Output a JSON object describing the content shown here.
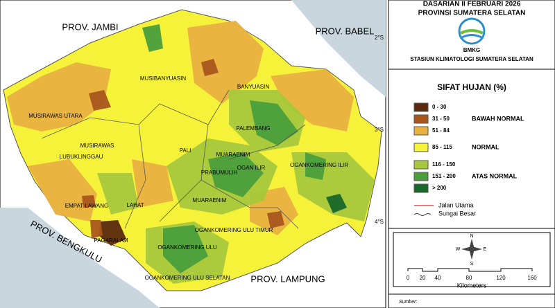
{
  "header": {
    "title": "DASARIAN II FEBRUARI 2026",
    "subtitle": "PROVINSI SUMATERA SELATAN",
    "logo": "BMKG",
    "station": "STASIUN KLIMATOLOGI SUMATERA SELATAN"
  },
  "legend": {
    "title": "SIFAT HUJAN (%)",
    "items": [
      {
        "label": "0 - 30",
        "color": "#5a2a0e"
      },
      {
        "label": "31 - 50",
        "color": "#a8561c"
      },
      {
        "label": "51 - 84",
        "color": "#e8b040"
      },
      {
        "label": "85 - 115",
        "color": "#f6f23a"
      },
      {
        "label": "116 - 150",
        "color": "#a6c83c"
      },
      {
        "label": "151 - 200",
        "color": "#4a9e3c"
      },
      {
        "label": "> 200",
        "color": "#17662a"
      }
    ],
    "groups": [
      "BAWAH NORMAL",
      "NORMAL",
      "ATAS NORMAL"
    ],
    "lines": [
      "Jalan Utama",
      "Sungai Besar"
    ]
  },
  "compass": [
    "N",
    "S",
    "E",
    "W"
  ],
  "scale": {
    "ticks": [
      "0",
      "20",
      "40",
      "80",
      "120",
      "160"
    ],
    "unit": "Kilometers"
  },
  "source": "Sumber:",
  "latitudes": [
    "2°S",
    "3°S",
    "4°S"
  ],
  "map_labels": [
    "PROV. JAMBI",
    "PROV. BABEL",
    "PROV. BENGKULU",
    "PROV. LAMPUNG",
    "MUSIBANYUASIN",
    "BANYUASIN",
    "MUSIRAWAS UTARA",
    "PALEMBANG",
    "MUSIRAWAS",
    "LUBUKLINGGAU",
    "PALI",
    "MUARAENIM",
    "PRABUMULIH",
    "OGAN ILIR",
    "OGANKOMERING ILIR",
    "EMPAT LAWANG",
    "LAHAT",
    "MUARAENIM",
    "PAGARALAM",
    "OGANKOMERING ULU",
    "OGANKOMERING ULU TIMUR",
    "OGANKOMERING ULU SELATAN"
  ]
}
